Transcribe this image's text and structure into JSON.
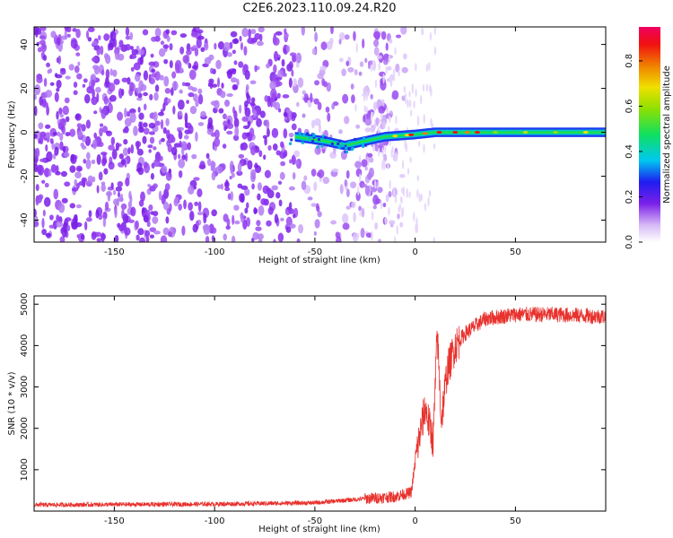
{
  "figure_title": "C2E6.2023.110.09.24.R20",
  "chart_data": [
    {
      "type": "heatmap",
      "xlabel": "Height of straight line (km)",
      "ylabel": "Frequency (Hz)",
      "xlim": [
        -190,
        95
      ],
      "ylim": [
        -50,
        48
      ],
      "xticks": [
        -150,
        -100,
        -50,
        0,
        50
      ],
      "yticks": [
        -40,
        -20,
        0,
        20,
        40
      ],
      "colorbar": {
        "label": "Normalized spectral amplitude",
        "range": [
          0,
          0.95
        ],
        "ticks": [
          0.0,
          0.2,
          0.4,
          0.6,
          0.8
        ],
        "colormap": "white-purple-blue-cyan-green-yellow-red-pink"
      },
      "features": {
        "noise_region_x": [
          -190,
          -25
        ],
        "signal_line": [
          {
            "x": -60,
            "freq": -2
          },
          {
            "x": -45,
            "freq": -4
          },
          {
            "x": -35,
            "freq": -6
          },
          {
            "x": -25,
            "freq": -4
          },
          {
            "x": -15,
            "freq": -2
          },
          {
            "x": 0,
            "freq": -1
          },
          {
            "x": 10,
            "freq": 0
          },
          {
            "x": 30,
            "freq": 0
          },
          {
            "x": 60,
            "freq": 0
          },
          {
            "x": 95,
            "freq": 0
          }
        ]
      }
    },
    {
      "type": "line",
      "xlabel": "Height of straight line (km)",
      "ylabel": "SNR (10 * v/v)",
      "xlim": [
        -190,
        95
      ],
      "ylim": [
        0,
        5200
      ],
      "xticks": [
        -150,
        -100,
        -50,
        0,
        50
      ],
      "yticks": [
        1000,
        2000,
        3000,
        4000,
        5000
      ],
      "line_color": "#e8322d",
      "series_outline": [
        {
          "x": -190,
          "y": 150
        },
        {
          "x": -100,
          "y": 170
        },
        {
          "x": -50,
          "y": 200
        },
        {
          "x": -25,
          "y": 300
        },
        {
          "x": -10,
          "y": 350
        },
        {
          "x": -2,
          "y": 450
        },
        {
          "x": 1,
          "y": 1500
        },
        {
          "x": 5,
          "y": 2500
        },
        {
          "x": 9,
          "y": 1700
        },
        {
          "x": 11,
          "y": 4300
        },
        {
          "x": 13,
          "y": 2200
        },
        {
          "x": 16,
          "y": 3400
        },
        {
          "x": 20,
          "y": 4000
        },
        {
          "x": 25,
          "y": 4300
        },
        {
          "x": 35,
          "y": 4650
        },
        {
          "x": 50,
          "y": 4750
        },
        {
          "x": 70,
          "y": 4750
        },
        {
          "x": 95,
          "y": 4700
        }
      ]
    }
  ]
}
